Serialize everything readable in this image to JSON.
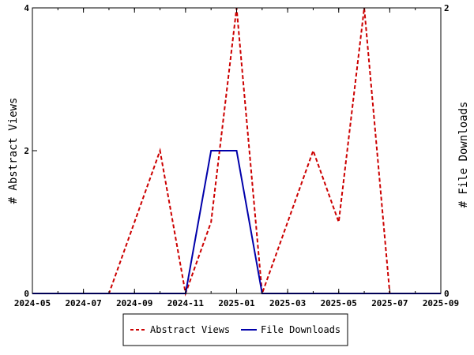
{
  "chart_data": {
    "type": "line",
    "x_ticks": [
      "2024-05",
      "2024-07",
      "2024-09",
      "2024-11",
      "2025-01",
      "2025-03",
      "2025-05",
      "2025-07",
      "2025-09"
    ],
    "x_months": [
      "2024-05",
      "2024-06",
      "2024-07",
      "2024-08",
      "2024-09",
      "2024-10",
      "2024-11",
      "2024-12",
      "2025-01",
      "2025-02",
      "2025-03",
      "2025-04",
      "2025-05",
      "2025-06",
      "2025-07",
      "2025-08",
      "2025-09"
    ],
    "y_left": {
      "label": "# Abstract Views",
      "ticks": [
        "0",
        "2",
        "4"
      ],
      "lim": [
        0,
        4
      ]
    },
    "y_right": {
      "label": "# File Downloads",
      "ticks": [
        "0",
        "2"
      ],
      "lim": [
        0,
        2
      ]
    },
    "series": [
      {
        "name": "Abstract Views",
        "axis": "left",
        "color": "#cc0000",
        "style": "dashed",
        "values": [
          0,
          0,
          0,
          0,
          1,
          2,
          0,
          1,
          4,
          0,
          1,
          2,
          1,
          4,
          0,
          0,
          0
        ]
      },
      {
        "name": "File Downloads",
        "axis": "right",
        "color": "#0000aa",
        "style": "solid",
        "values": [
          0,
          0,
          0,
          0,
          0,
          0,
          0,
          1,
          1,
          0,
          0,
          0,
          0,
          0,
          0,
          0,
          0
        ]
      }
    ],
    "legend": {
      "placement": "bottom-center"
    }
  }
}
